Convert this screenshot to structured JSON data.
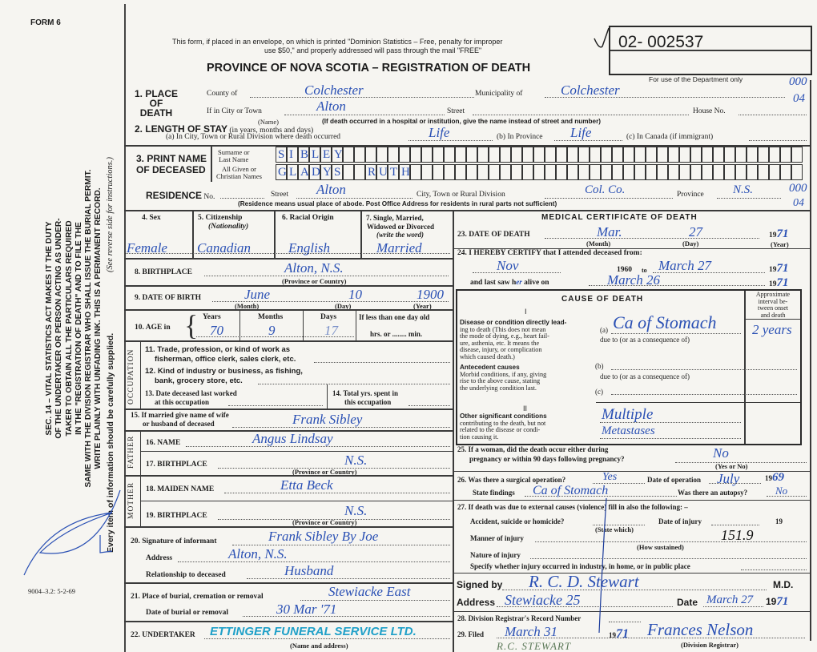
{
  "header": {
    "form_number": "FORM 6",
    "mail_notice_1": "This form, if placed in an envelope, on which is printed \"Dominion Statistics – Free, penalty for improper",
    "mail_notice_2": "use $50,\" and properly addressed will pass through the mail \"FREE\"",
    "title": "PROVINCE OF NOVA SCOTIA – REGISTRATION OF DEATH",
    "registration_number": "02- 002537",
    "department_only": "For use of the Department only",
    "dept_code_1": "000",
    "dept_code_2": "04",
    "print_code": "9004–3.2: 5-2-69"
  },
  "sidebar": {
    "lines": [
      "SEC. 14 – VITAL STATISTICS ACT MAKES IT THE DUTY",
      "OF THE UNDERTAKER OR PERSON ACTING AS UNDER-",
      "TAKER TO OBTAIN ALL THE PARTICULARS REQUIRED",
      "IN THE \"REGISTRATION OF DEATH\" AND TO FILE THE",
      "SAME WITH THE DIVISION REGISTRAR WHO SHALL ISSUE THE BURIAL PERMIT.",
      "WRITE PLAINLY WITH UNFADING INK. THIS IS A PERMANENT RECORD."
    ],
    "every_item": "Every item of information should be carefully supplied.",
    "see_reverse": "(See reverse side for instructions.)"
  },
  "place_of_death": {
    "label_1": "1. PLACE",
    "label_2": "OF",
    "label_3": "DEATH",
    "county_label": "County of",
    "county": "Colchester",
    "municipality_label": "Municipality of",
    "municipality": "Colchester",
    "city_label": "If in City or Town",
    "city": "Alton",
    "name_note": "(Name)",
    "street_label": "Street",
    "house_label": "House No.",
    "hospital_note": "(If death occurred in a hospital or institution, give the name instead of street and number)"
  },
  "length_of_stay": {
    "label": "2. LENGTH OF STAY",
    "label_note": "(in years, months and days)",
    "a_label": "(a) In City, Town or Rural Division where death occurred",
    "a_value": "Life",
    "b_label": "(b) In Province",
    "b_value": "Life",
    "c_label": "(c) In Canada (if immigrant)"
  },
  "deceased_name": {
    "label_1": "3. PRINT NAME",
    "label_2": "OF DECEASED",
    "surname_label_1": "Surname or",
    "surname_label_2": "Last Name",
    "given_label_1": "All Given or",
    "given_label_2": "Christian Names",
    "surname_letters": [
      "S",
      "I",
      "B",
      "L",
      "E",
      "Y"
    ],
    "given_letters": [
      "G",
      "L",
      "A",
      "D",
      "Y",
      "S",
      "",
      "",
      "R",
      "U",
      "T",
      "H"
    ]
  },
  "residence": {
    "label": "RESIDENCE",
    "no_label": "No.",
    "street_label": "Street",
    "street": "Alton",
    "city_label": "City, Town or Rural Division",
    "city": "Col. Co.",
    "province_label": "Province",
    "province": "N.S.",
    "note": "(Residence means usual place of abode. Post Office Address for residents in rural parts not sufficient)",
    "code_1": "000",
    "code_2": "04"
  },
  "personal": {
    "sex_label": "4. Sex",
    "sex": "Female",
    "citizenship_label": "5. Citizenship",
    "citizenship_note": "(Nationality)",
    "citizenship": "Canadian",
    "racial_label": "6. Racial Origin",
    "racial": "English",
    "marital_label_1": "7. Single, Married,",
    "marital_label_2": "Widowed or Divorced",
    "marital_label_3": "(write the word)",
    "marital": "Married",
    "birthplace_label": "8. BIRTHPLACE",
    "birthplace": "Alton, N.S.",
    "birthplace_note": "(Province or Country)",
    "dob_label": "9. DATE OF BIRTH",
    "dob_month": "June",
    "dob_day": "10",
    "dob_year": "1900",
    "month_note": "(Month)",
    "day_note": "(Day)",
    "year_note": "(Year)",
    "age_label": "10. AGE in",
    "years_label": "Years",
    "years": "70",
    "months_label": "Months",
    "months": "9",
    "days_label": "Days",
    "days": "17",
    "less_than_day": "If less than one day old",
    "hrs_min": "hrs. or ........ min."
  },
  "occupation": {
    "side_label": "OCCUPATION",
    "q11_1": "11. Trade, profession, or kind of work as",
    "q11_2": "fisherman, office clerk, sales clerk, etc.",
    "q12_1": "12. Kind of industry or business, as fishing,",
    "q12_2": "bank, grocery store, etc.",
    "q13_1": "13. Date deceased last worked",
    "q13_2": "at this occupation",
    "q14_1": "14. Total yrs. spent in",
    "q14_2": "this occupation"
  },
  "family": {
    "spouse_label_1": "15. If married give name of wife",
    "spouse_label_2": "or husband of deceased",
    "spouse": "Frank Sibley",
    "father_side": "FATHER",
    "father_name_label": "16. NAME",
    "father_name": "Angus Lindsay",
    "father_birthplace_label": "17. BIRTHPLACE",
    "father_birthplace": "N.S.",
    "mother_side": "MOTHER",
    "mother_maiden_label": "18. MAIDEN NAME",
    "mother_maiden": "Etta Beck",
    "mother_birthplace_label": "19. BIRTHPLACE",
    "mother_birthplace": "N.S.",
    "province_note": "(Province or Country)"
  },
  "informant": {
    "signature_label": "20. Signature of informant",
    "signature": "Frank Sibley  By Joe",
    "address_label": "Address",
    "address": "Alton, N.S.",
    "relationship_label": "Relationship to deceased",
    "relationship": "Husband"
  },
  "burial": {
    "place_label": "21. Place of burial, cremation or removal",
    "place": "Stewiacke East",
    "date_label": "Date of burial or removal",
    "date": "30 Mar '71",
    "undertaker_label": "22. UNDERTAKER",
    "undertaker": "ETTINGER FUNERAL SERVICE LTD.",
    "undertaker_note": "(Name and address)"
  },
  "medical": {
    "title": "MEDICAL CERTIFICATE OF DEATH",
    "dod_label": "23. DATE OF DEATH",
    "dod_month": "Mar.",
    "dod_day": "27",
    "dod_year_prefix": "19",
    "dod_year": "71",
    "certify_label": "24. I HEREBY CERTIFY that I attended deceased from:",
    "attended_from": "Nov",
    "from_year": "1960",
    "to_label": "to",
    "attended_to": "March 27",
    "to_year_prefix": "19",
    "to_year": "71",
    "last_saw_label": "and last saw h",
    "last_saw_mark": "er",
    "alive_on_label": "alive on",
    "last_saw": "March 26",
    "last_year_prefix": "19",
    "last_year": "71"
  },
  "cause": {
    "title": "CAUSE OF DEATH",
    "interval_header": [
      "Approximate",
      "interval be-",
      "tween onset",
      "and death"
    ],
    "section_1": "I",
    "direct_title": "Disease or condition directly lead-",
    "direct_lines": [
      "ing to death (This does not mean",
      "the mode of dying, e.g., heart fail-",
      "ure, asthenia, etc. It means the",
      "disease, injury, or complication",
      "which caused death.)"
    ],
    "a_label": "(a)",
    "a_value": "Ca of Stomach",
    "a_interval": "2 years",
    "due_to": "due to (or as a consequence of)",
    "antecedent_title": "Antecedent causes",
    "antecedent_lines": [
      "Morbid conditions, if any, giving",
      "rise to the above cause, stating",
      "the underlying condition last."
    ],
    "b_label": "(b)",
    "c_label": "(c)",
    "section_2": "II",
    "other_title": "Other significant conditions",
    "other_lines": [
      "contributing to the death, but not",
      "related to the disease or condi-",
      "tion causing it."
    ],
    "other_value_1": "Multiple",
    "other_value_2": "Metastases"
  },
  "questions": {
    "q25_1": "25. If a woman, did the death occur either during",
    "q25_2": "pregnancy or within 90 days following pregnancy?",
    "q25_answer": "No",
    "yes_no_note": "(Yes or No)",
    "q26_1": "26. Was there a surgical operation?",
    "q26_answer": "Yes",
    "op_date_label": "Date of operation",
    "op_date": "July",
    "op_year_prefix": "19",
    "op_year": "69",
    "findings_label": "State findings",
    "findings": "Ca of Stomach",
    "autopsy_label": "Was there an autopsy?",
    "autopsy": "No",
    "q27": "27. If death was due to external causes (violence) fill in also the following: –",
    "accident_label": "Accident, suicide or homicide?",
    "state_which": "(State which)",
    "injury_date_label": "Date of injury",
    "injury_year_prefix": "19",
    "manner_label": "Manner of injury",
    "how_sustained": "(How sustained)",
    "code_value": "151.9",
    "nature_label": "Nature of injury",
    "specify_label": "Specify whether injury occurred in industry, in home, or in public place"
  },
  "signature": {
    "signed_label": "Signed by",
    "signed": "R. C. D. Stewart",
    "md": "M.D.",
    "address_label": "Address",
    "address": "Stewiacke 25",
    "date_label": "Date",
    "date": "March 27",
    "year_prefix": "19",
    "year": "71"
  },
  "registrar": {
    "q28": "28. Division Registrar's Record Number",
    "q29": "29. Filed",
    "filed": "March 31",
    "filed_year_prefix": "19",
    "filed_year": "71",
    "registrar": "Frances Nelson",
    "registrar_note": "(Division Registrar)",
    "stamp": "R.C. STEWART"
  },
  "colors": {
    "ink": "#2a50b4",
    "stamp": "#1fa0c8",
    "paper": "#f6f5f1"
  }
}
